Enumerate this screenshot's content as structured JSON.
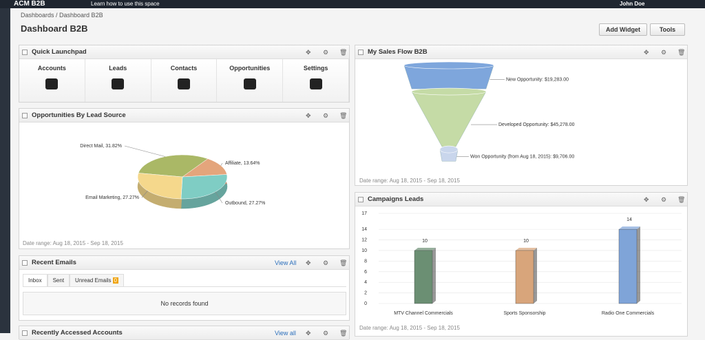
{
  "topbar": {
    "brand": "ACM B2B",
    "help": "Learn how to use this space",
    "user": "John Doe"
  },
  "breadcrumb": "Dashboards / Dashboard B2B",
  "page_title": "Dashboard B2B",
  "buttons": {
    "add_widget": "Add Widget",
    "tools": "Tools"
  },
  "quick_launchpad": {
    "title": "Quick Launchpad",
    "items": [
      "Accounts",
      "Leads",
      "Contacts",
      "Opportunities",
      "Settings"
    ]
  },
  "lead_source": {
    "title": "Opportunities By Lead Source",
    "date_range": "Date range: Aug 18, 2015 - Sep 18, 2015",
    "chart_data": {
      "type": "pie",
      "categories": [
        "Direct Mail",
        "Affiliate",
        "Outbound",
        "Email Marketing"
      ],
      "values": [
        31.82,
        13.64,
        27.27,
        27.27
      ],
      "value_labels": [
        "Direct Mail, 31.82%",
        "Affiliate, 13.64%",
        "Outbound, 27.27%",
        "Email Marketing, 27.27%"
      ],
      "colors": [
        "#aab866",
        "#e4a57c",
        "#7fcdc4",
        "#f5d88c"
      ]
    }
  },
  "recent_emails": {
    "title": "Recent Emails",
    "view_all": "View All",
    "tabs": [
      "Inbox",
      "Sent",
      "Unread Emails"
    ],
    "unread_count": 0,
    "empty": "No records found"
  },
  "recent_accounts": {
    "title": "Recently Accessed Accounts",
    "view_all": "View all"
  },
  "sales_flow": {
    "title": "My Sales Flow B2B",
    "date_range": "Date range: Aug 18, 2015 - Sep 18, 2015",
    "chart_data": {
      "type": "funnel",
      "categories": [
        "New Opportunity",
        "Developed Opportunity",
        "Won Opportunity (from Aug 18, 2015)"
      ],
      "values": [
        19283,
        45278,
        9706
      ],
      "value_labels": [
        "New Opportunity: $19,283.00",
        "Developed Opportunity: $45,278.00",
        "Won Opportunity (from Aug 18, 2015): $9,706.00"
      ],
      "colors": [
        "#7ea6dc",
        "#c5dba6",
        "#c9d6ec"
      ]
    }
  },
  "campaigns": {
    "title": "Campaigns Leads",
    "date_range": "Date range: Aug 18, 2015 - Sep 18, 2015",
    "chart_data": {
      "type": "bar",
      "categories": [
        "MTV Channel Commercials",
        "Sports Sponsorship",
        "Radio One Commercials"
      ],
      "values": [
        10,
        10,
        14
      ],
      "colors": [
        "#6b8f73",
        "#d8a57b",
        "#7fa4d8"
      ],
      "ylim": [
        0,
        17
      ],
      "yticks": [
        0,
        2,
        4,
        6,
        8,
        10,
        12,
        14,
        17
      ],
      "grid": true
    }
  }
}
